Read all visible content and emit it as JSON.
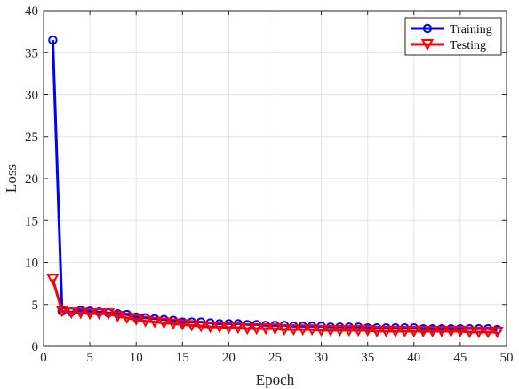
{
  "chart_data": {
    "type": "line",
    "xlabel": "Epoch",
    "ylabel": "Loss",
    "xlim": [
      0,
      50
    ],
    "ylim": [
      0,
      40
    ],
    "xticks": [
      0,
      5,
      10,
      15,
      20,
      25,
      30,
      35,
      40,
      45,
      50
    ],
    "yticks": [
      0,
      5,
      10,
      15,
      20,
      25,
      30,
      35,
      40
    ],
    "grid": true,
    "legend_position": "top-right",
    "series": [
      {
        "name": "Training",
        "color": "#0000ff",
        "marker": "circle",
        "x": [
          1,
          2,
          3,
          4,
          5,
          6,
          7,
          8,
          9,
          10,
          11,
          12,
          13,
          14,
          15,
          16,
          17,
          18,
          19,
          20,
          21,
          22,
          23,
          24,
          25,
          26,
          27,
          28,
          29,
          30,
          31,
          32,
          33,
          34,
          35,
          36,
          37,
          38,
          39,
          40,
          41,
          42,
          43,
          44,
          45,
          46,
          47,
          48,
          49
        ],
        "values": [
          36.5,
          4.2,
          4.1,
          4.3,
          4.2,
          4.1,
          4.0,
          3.9,
          3.8,
          3.5,
          3.4,
          3.3,
          3.2,
          3.1,
          2.9,
          2.9,
          2.9,
          2.8,
          2.7,
          2.7,
          2.7,
          2.6,
          2.6,
          2.5,
          2.5,
          2.5,
          2.4,
          2.4,
          2.4,
          2.4,
          2.3,
          2.3,
          2.3,
          2.3,
          2.2,
          2.2,
          2.2,
          2.2,
          2.2,
          2.2,
          2.1,
          2.1,
          2.1,
          2.1,
          2.1,
          2.1,
          2.1,
          2.1,
          2.0
        ]
      },
      {
        "name": "Testing",
        "color": "#ff0000",
        "marker": "triangle-down",
        "x": [
          1,
          2,
          3,
          4,
          5,
          6,
          7,
          8,
          9,
          10,
          11,
          12,
          13,
          14,
          15,
          16,
          17,
          18,
          19,
          20,
          21,
          22,
          23,
          24,
          25,
          26,
          27,
          28,
          29,
          30,
          31,
          32,
          33,
          34,
          35,
          36,
          37,
          38,
          39,
          40,
          41,
          42,
          43,
          44,
          45,
          46,
          47,
          48,
          49
        ],
        "values": [
          8.0,
          4.2,
          4.0,
          4.0,
          3.9,
          3.9,
          3.9,
          3.6,
          3.4,
          3.2,
          3.0,
          2.9,
          2.8,
          2.7,
          2.6,
          2.5,
          2.4,
          2.3,
          2.3,
          2.2,
          2.2,
          2.1,
          2.1,
          2.1,
          2.1,
          2.0,
          2.0,
          2.0,
          2.0,
          1.9,
          1.9,
          1.9,
          1.9,
          1.9,
          1.9,
          1.8,
          1.8,
          1.8,
          1.8,
          1.8,
          1.8,
          1.8,
          1.8,
          1.8,
          1.8,
          1.7,
          1.7,
          1.7,
          1.7
        ]
      }
    ]
  }
}
